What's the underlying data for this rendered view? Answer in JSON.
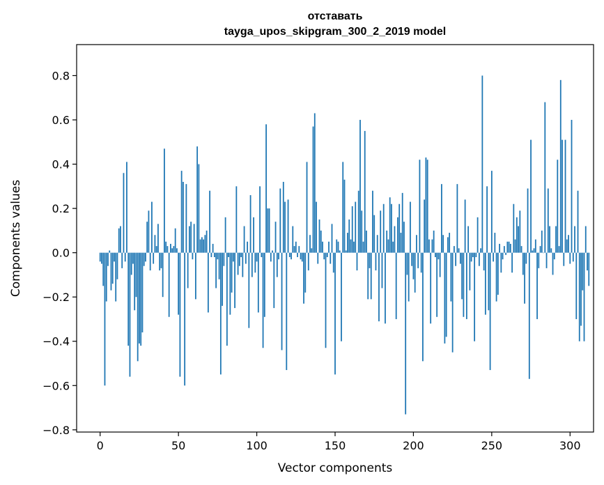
{
  "chart_data": {
    "type": "bar",
    "title_line1": "отставать",
    "title_line2": "tayga_upos_skipgram_300_2_2019 model",
    "xlabel": "Vector components",
    "ylabel": "Components values",
    "xlim": [
      -15,
      315
    ],
    "ylim": [
      -0.81,
      0.94
    ],
    "x_ticks": [
      0,
      50,
      100,
      150,
      200,
      250,
      300
    ],
    "x_tick_labels": [
      "0",
      "50",
      "100",
      "150",
      "200",
      "250",
      "300"
    ],
    "y_ticks": [
      -0.8,
      -0.6,
      -0.4,
      -0.2,
      0.0,
      0.2,
      0.4,
      0.6,
      0.8
    ],
    "y_tick_labels": [
      "−0.8",
      "−0.6",
      "−0.4",
      "−0.2",
      "0.0",
      "0.2",
      "0.4",
      "0.6",
      "0.8"
    ],
    "bar_color": "#1f77b4",
    "values": [
      -0.04,
      -0.05,
      -0.15,
      -0.6,
      -0.22,
      -0.06,
      0.01,
      -0.17,
      -0.14,
      -0.04,
      -0.22,
      -0.12,
      0.11,
      0.12,
      -0.07,
      0.36,
      -0.04,
      0.41,
      -0.42,
      -0.56,
      -0.1,
      -0.05,
      -0.26,
      -0.2,
      -0.49,
      -0.41,
      -0.42,
      -0.36,
      -0.06,
      -0.04,
      0.14,
      0.19,
      -0.08,
      0.23,
      -0.05,
      0.08,
      0.03,
      0.13,
      -0.08,
      -0.07,
      -0.2,
      0.47,
      0.05,
      0.03,
      -0.29,
      0.04,
      0.02,
      0.03,
      0.11,
      0.02,
      -0.28,
      -0.56,
      0.37,
      0.32,
      -0.6,
      0.31,
      -0.16,
      0.12,
      0.14,
      -0.03,
      0.13,
      -0.21,
      0.48,
      0.4,
      0.06,
      0.07,
      0.06,
      0.08,
      0.1,
      -0.27,
      0.28,
      -0.02,
      0.04,
      -0.02,
      -0.16,
      -0.03,
      -0.12,
      -0.55,
      -0.24,
      -0.06,
      0.16,
      -0.42,
      -0.02,
      -0.28,
      -0.18,
      -0.04,
      -0.25,
      0.3,
      -0.1,
      -0.06,
      -0.02,
      -0.11,
      0.12,
      -0.05,
      0.05,
      -0.34,
      0.26,
      -0.11,
      0.16,
      -0.09,
      -0.04,
      -0.27,
      0.3,
      -0.02,
      -0.43,
      -0.29,
      0.58,
      0.2,
      0.2,
      -0.04,
      0.01,
      -0.25,
      0.14,
      -0.11,
      -0.03,
      0.29,
      -0.44,
      0.32,
      0.23,
      -0.53,
      0.24,
      -0.02,
      -0.03,
      0.12,
      0.03,
      0.05,
      -0.02,
      0.03,
      -0.03,
      -0.04,
      -0.23,
      -0.18,
      0.41,
      -0.08,
      0.08,
      0.02,
      0.57,
      0.63,
      0.23,
      -0.05,
      0.15,
      0.1,
      0.05,
      -0.03,
      -0.43,
      -0.02,
      0.05,
      -0.05,
      0.13,
      -0.09,
      -0.55,
      0.06,
      0.05,
      0.01,
      -0.4,
      0.41,
      0.33,
      0.01,
      0.09,
      0.15,
      0.06,
      0.21,
      0.05,
      0.23,
      -0.08,
      0.28,
      0.6,
      0.19,
      0.05,
      0.55,
      0.1,
      -0.21,
      -0.07,
      -0.21,
      0.28,
      0.17,
      -0.08,
      0.08,
      -0.31,
      0.19,
      -0.16,
      0.22,
      -0.32,
      0.1,
      0.06,
      0.25,
      0.22,
      0.05,
      0.12,
      -0.3,
      0.16,
      0.22,
      0.09,
      0.27,
      0.14,
      -0.73,
      -0.1,
      -0.22,
      0.23,
      -0.06,
      -0.12,
      -0.18,
      0.08,
      -0.07,
      0.42,
      -0.09,
      -0.49,
      0.24,
      0.43,
      0.42,
      0.06,
      -0.32,
      0.06,
      0.1,
      -0.02,
      -0.29,
      -0.03,
      -0.11,
      0.31,
      0.08,
      -0.41,
      -0.38,
      0.07,
      0.09,
      -0.22,
      -0.45,
      0.03,
      -0.06,
      0.31,
      0.02,
      -0.05,
      -0.21,
      -0.29,
      0.24,
      -0.3,
      0.12,
      -0.17,
      -0.04,
      -0.02,
      -0.4,
      -0.02,
      0.16,
      -0.06,
      0.02,
      0.8,
      -0.08,
      -0.28,
      0.3,
      -0.26,
      -0.53,
      0.37,
      -0.04,
      0.09,
      -0.22,
      -0.19,
      0.04,
      -0.09,
      -0.03,
      0.03,
      -0.01,
      0.05,
      0.05,
      0.04,
      -0.09,
      0.22,
      0.06,
      0.16,
      0.12,
      0.19,
      0.03,
      -0.1,
      -0.23,
      -0.05,
      0.29,
      -0.57,
      0.51,
      0.01,
      0.02,
      0.06,
      -0.3,
      -0.07,
      0.03,
      0.1,
      0.0,
      0.68,
      -0.07,
      0.29,
      0.12,
      0.02,
      -0.1,
      -0.03,
      0.12,
      0.42,
      0.03,
      0.78,
      0.51,
      -0.06,
      0.51,
      0.06,
      0.08,
      -0.05,
      0.6,
      -0.04,
      0.12,
      -0.3,
      0.28,
      -0.4,
      -0.33,
      -0.17,
      -0.4,
      0.12,
      -0.08,
      -0.15
    ]
  }
}
